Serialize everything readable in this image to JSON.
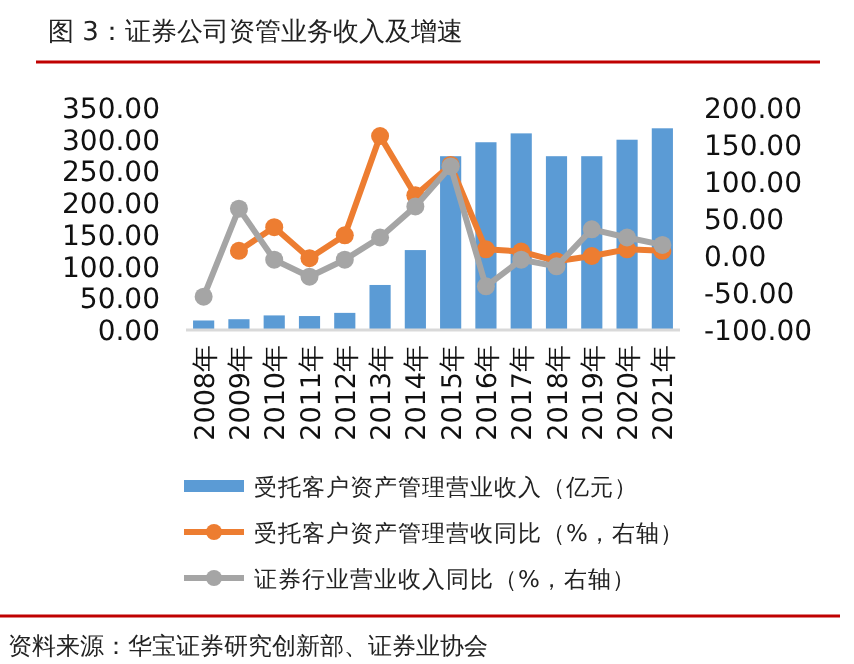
{
  "chart_data": {
    "type": "bar",
    "title": "图 3：证券公司资管业务收入及增速",
    "categories": [
      "2008年",
      "2009年",
      "2010年",
      "2011年",
      "2012年",
      "2013年",
      "2014年",
      "2015年",
      "2016年",
      "2017年",
      "2018年",
      "2019年",
      "2020年",
      "2021年"
    ],
    "series": [
      {
        "name": "受托客户资产管理营业收入（亿元）",
        "color": "#5b9bd5",
        "values": [
          15,
          17,
          23,
          22,
          27,
          71,
          126,
          274,
          296,
          310,
          274,
          274,
          300,
          318
        ]
      },
      {
        "name": "受托客户资产管理营收同比（%，右轴）",
        "type": "line",
        "axis": "y2",
        "color": "#ed7d31",
        "values": [
          null,
          7,
          39,
          -3,
          28,
          162,
          82,
          123,
          9,
          6,
          -7,
          0,
          9,
          7
        ]
      },
      {
        "name": "证券行业营业收入同比（%，右轴）",
        "type": "line",
        "axis": "y2",
        "color": "#a5a5a5",
        "values": [
          -55,
          64,
          -5,
          -28,
          -5,
          25,
          67,
          121,
          -41,
          -5,
          -14,
          36,
          25,
          15
        ]
      }
    ],
    "ylim": [
      0,
      350
    ],
    "yticks": [
      {
        "value": 0,
        "label": "0.00"
      },
      {
        "value": 50,
        "label": "50.00"
      },
      {
        "value": 100,
        "label": "100.00"
      },
      {
        "value": 150,
        "label": "150.00"
      },
      {
        "value": 200,
        "label": "200.00"
      },
      {
        "value": 250,
        "label": "250.00"
      },
      {
        "value": 300,
        "label": "300.00"
      },
      {
        "value": 350,
        "label": "350.00"
      }
    ],
    "y2lim": [
      -100,
      200
    ],
    "y2ticks": [
      {
        "value": -100,
        "label": "-100.00"
      },
      {
        "value": -50,
        "label": "-50.00"
      },
      {
        "value": 0,
        "label": "0.00"
      },
      {
        "value": 50,
        "label": "50.00"
      },
      {
        "value": 100,
        "label": "100.00"
      },
      {
        "value": 150,
        "label": "150.00"
      },
      {
        "value": 200,
        "label": "200.00"
      }
    ],
    "legend": "bottom",
    "marker": "circle",
    "grid": false,
    "annotations": [
      "资料来源：华宝证券研究创新部、证券业协会"
    ]
  }
}
